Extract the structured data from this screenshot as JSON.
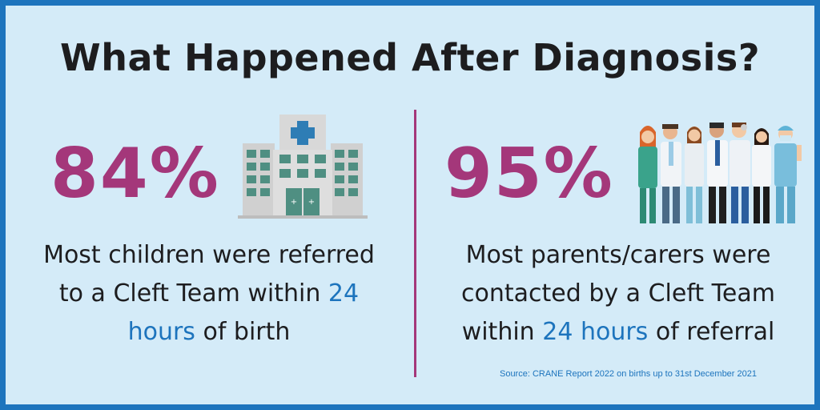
{
  "title": "What Happened After Diagnosis?",
  "left": {
    "stat": "84%",
    "desc_line1": "Most children were referred",
    "desc_line2_pre": "to a Cleft Team within ",
    "desc_line2_hl": "24",
    "desc_line3_hl": "hours",
    "desc_line3_post": " of birth",
    "icon": "hospital-icon"
  },
  "right": {
    "stat": "95%",
    "desc_line1": "Most parents/carers were",
    "desc_line2": "contacted by a Cleft Team",
    "desc_line3_pre": "within ",
    "desc_line3_hl": "24 hours",
    "desc_line3_post": " of referral",
    "icon": "medical-staff-icon"
  },
  "source": "Source: CRANE Report 2022 on births up to 31st December 2021",
  "colors": {
    "background": "#d4ebf8",
    "border": "#1d74bd",
    "stat": "#a4377a",
    "highlight": "#1d74bd",
    "text": "#1d1d1f"
  }
}
